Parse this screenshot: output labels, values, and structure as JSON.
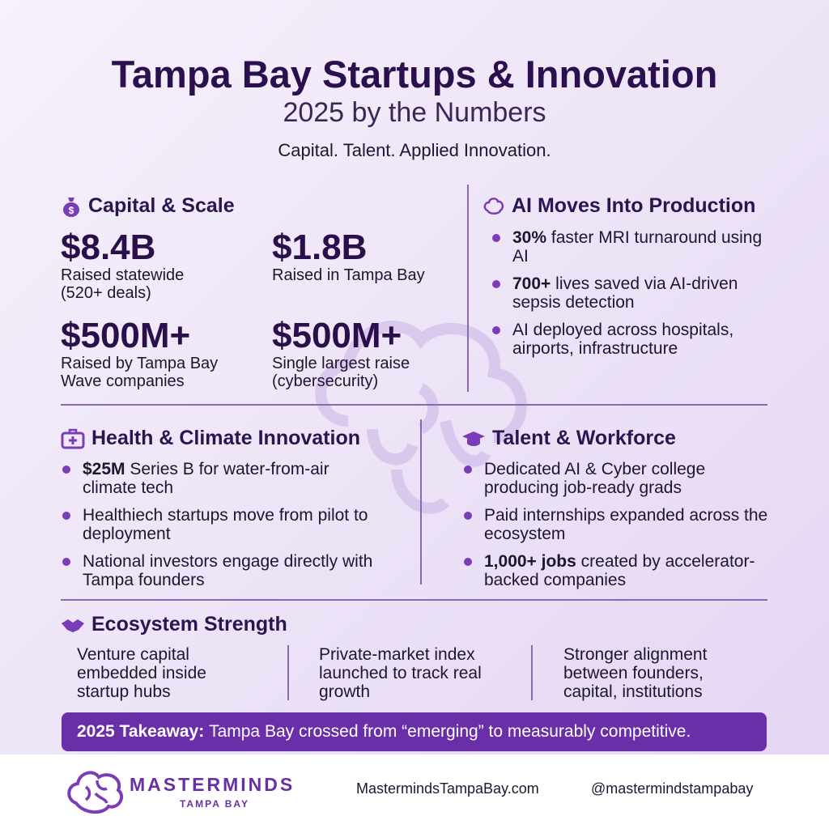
{
  "header": {
    "title": "Tampa Bay Startups & Innovation",
    "subtitle": "2025 by the Numbers",
    "tagline": "Capital. Talent. Applied Innovation."
  },
  "capital": {
    "heading": "Capital & Scale",
    "stats": [
      {
        "value": "$8.4B",
        "label": "Raised statewide (520+ deals)"
      },
      {
        "value": "$1.8B",
        "label": "Raised in Tampa Bay"
      },
      {
        "value": "$500M+",
        "label": "Raised by Tampa Bay Wave companies"
      },
      {
        "value": "$500M+",
        "label": "Single largest raise (cybersecurity)"
      }
    ]
  },
  "ai": {
    "heading": "AI Moves Into Production",
    "bullets": [
      {
        "bold": "30%",
        "text": "faster MRI turnaround using AI"
      },
      {
        "bold": "700+",
        "text": "lives saved via AI-driven sepsis detection"
      },
      {
        "text": "AI deployed across hospitals, airports, infrastructure"
      }
    ]
  },
  "health": {
    "heading": "Health & Climate Innovation",
    "bullets": [
      {
        "bold": "$25M",
        "text": "Series B for water-from-air climate tech"
      },
      {
        "text": "Healthiech startups move from pilot to deployment"
      },
      {
        "text": "National investors engage directly with Tampa founders"
      }
    ]
  },
  "talent": {
    "heading": "Talent & Workforce",
    "bullets": [
      {
        "text": "Dedicated AI & Cyber college producing job-ready grads"
      },
      {
        "text": "Paid internships expanded across the ecosystem"
      },
      {
        "bold": "1,000+ jobs",
        "text": "created by accelerator-backed companies"
      }
    ]
  },
  "ecosystem": {
    "heading": "Ecosystem Strength",
    "items": [
      "Venture capital embedded inside startup hubs",
      "Private-market index launched to track real growth",
      "Stronger alignment between founders, capital, institutions"
    ]
  },
  "takeaway": {
    "label": "2025 Takeaway:",
    "text": "Tampa Bay crossed from “emerging” to measurably competitive."
  },
  "footer": {
    "brand": "MASTERMINDS",
    "brand_sub": "TAMPA BAY",
    "website": "MastermindsTampaBay.com",
    "handle": "@mastermindstampabay"
  }
}
